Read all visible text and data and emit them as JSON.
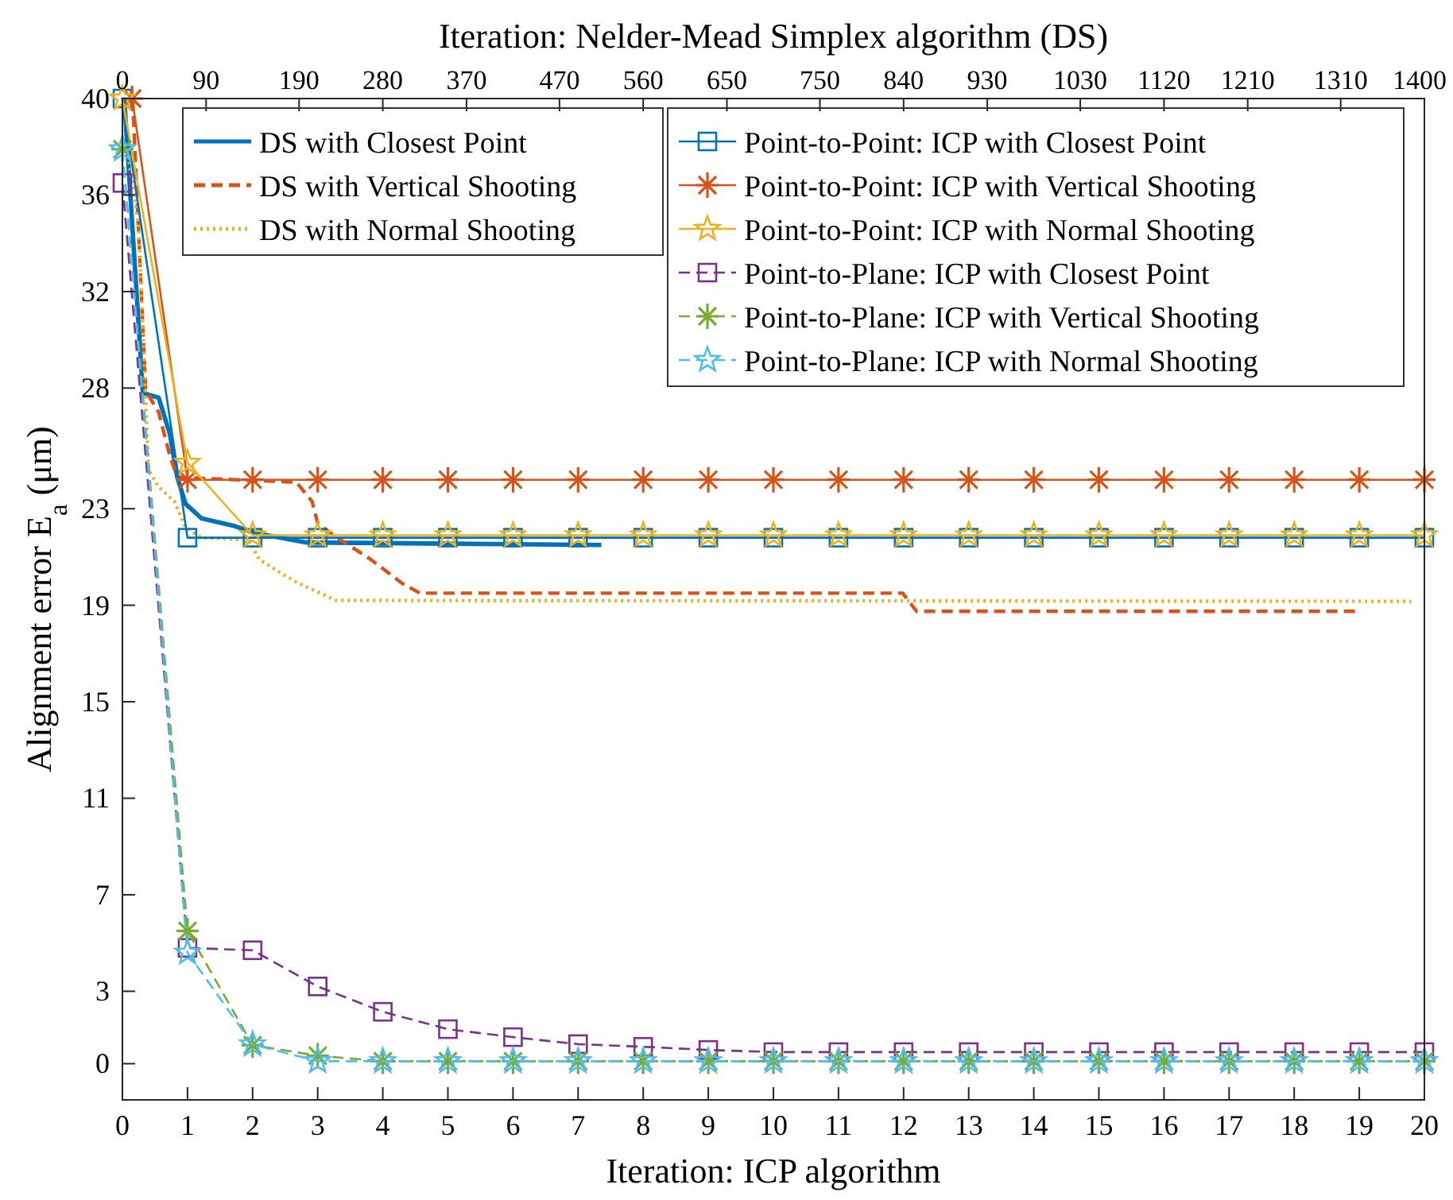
{
  "chart_data": {
    "type": "line",
    "xlabel": "Iteration: ICP algorithm",
    "x2label": "Iteration: Nelder-Mead Simplex algorithm (DS)",
    "ylabel": "Alignment error  E$_{a}$ (μm)",
    "x": [
      0,
      1,
      2,
      3,
      4,
      5,
      6,
      7,
      8,
      9,
      10,
      11,
      12,
      13,
      14,
      15,
      16,
      17,
      18,
      19,
      20
    ],
    "xlim": [
      0,
      20
    ],
    "xticks": [
      0,
      1,
      2,
      3,
      4,
      5,
      6,
      7,
      8,
      9,
      10,
      11,
      12,
      13,
      14,
      15,
      16,
      17,
      18,
      19,
      20
    ],
    "x2lim": [
      0,
      1400
    ],
    "x2ticks": [
      0,
      90,
      190,
      280,
      370,
      470,
      560,
      650,
      750,
      840,
      930,
      1030,
      1120,
      1210,
      1310,
      1400
    ],
    "ylim": [
      -1.5,
      40
    ],
    "yticks": [
      0,
      3,
      7,
      11,
      15,
      19,
      23,
      28,
      32,
      36,
      40
    ],
    "grid": false,
    "legend": "top right",
    "series": [
      {
        "name": "DS with Closest Point",
        "color": "#0072bd",
        "axis": "x2",
        "marker": "none",
        "line_style": "solid",
        "x": [
          2,
          14,
          22,
          39,
          51,
          59,
          68,
          85,
          119,
          142,
          198,
          515
        ],
        "values": [
          40,
          32.7,
          27.8,
          27.6,
          26.1,
          24.3,
          23.2,
          22.6,
          22.3,
          22.0,
          21.6,
          21.5
        ]
      },
      {
        "name": "DS with Vertical Shooting",
        "color": "#d95319",
        "axis": "x2",
        "marker": "none",
        "line_style": "dashed",
        "x": [
          11,
          25,
          39,
          51,
          59,
          187,
          204,
          210,
          227,
          267,
          301,
          320,
          839,
          854,
          1327
        ],
        "values": [
          40,
          27.9,
          27.0,
          25.2,
          24.3,
          24.1,
          23.3,
          22.4,
          21.9,
          20.9,
          19.9,
          19.5,
          19.5,
          18.75,
          18.75
        ]
      },
      {
        "name": "DS with Normal Shooting",
        "color": "#edb120",
        "axis": "x2",
        "marker": "none",
        "line_style": "dotted",
        "x": [
          5,
          17,
          22,
          28,
          39,
          56,
          68,
          85,
          136,
          147,
          176,
          190,
          230,
          1386
        ],
        "values": [
          37.9,
          34.9,
          30.5,
          24.6,
          23.9,
          23.3,
          22.2,
          21.8,
          21.7,
          20.9,
          20.2,
          19.9,
          19.2,
          19.16
        ]
      },
      {
        "name": "Point-to-Point: ICP with Closest Point",
        "color": "#0072bd",
        "marker": "square",
        "line_style": "solid",
        "values": [
          40,
          21.8,
          21.8,
          21.8,
          21.8,
          21.8,
          21.8,
          21.8,
          21.8,
          21.8,
          21.8,
          21.8,
          21.8,
          21.8,
          21.8,
          21.8,
          21.8,
          21.8,
          21.8,
          21.8,
          21.8
        ]
      },
      {
        "name": "Point-to-Point: ICP with Vertical Shooting",
        "color": "#d95319",
        "marker": "cross",
        "line_style": "solid",
        "x": [
          0.15,
          1,
          2,
          3,
          4,
          5,
          6,
          7,
          8,
          9,
          10,
          11,
          12,
          13,
          14,
          15,
          16,
          17,
          18,
          19,
          20
        ],
        "values": [
          40,
          24.2,
          24.2,
          24.2,
          24.2,
          24.2,
          24.2,
          24.2,
          24.2,
          24.2,
          24.2,
          24.2,
          24.2,
          24.2,
          24.2,
          24.2,
          24.2,
          24.2,
          24.2,
          24.2,
          24.2
        ]
      },
      {
        "name": "Point-to-Point: ICP with Normal Shooting",
        "color": "#edb120",
        "marker": "star",
        "line_style": "solid",
        "values": [
          40,
          24.9,
          21.9,
          21.9,
          21.9,
          21.9,
          21.9,
          21.9,
          21.9,
          21.9,
          21.9,
          21.9,
          21.9,
          21.9,
          21.9,
          21.9,
          21.9,
          21.9,
          21.9,
          21.9,
          21.9
        ]
      },
      {
        "name": "Point-to-Plane: ICP with Closest Point",
        "color": "#7e2f8e",
        "marker": "square",
        "line_style": "dashed",
        "values": [
          36.5,
          4.8,
          4.7,
          3.2,
          2.15,
          1.43,
          1.1,
          0.81,
          0.7,
          0.57,
          0.48,
          0.48,
          0.48,
          0.48,
          0.48,
          0.48,
          0.48,
          0.48,
          0.48,
          0.48,
          0.48
        ]
      },
      {
        "name": "Point-to-Plane: ICP with Vertical Shooting",
        "color": "#77ac30",
        "marker": "cross",
        "line_style": "dashed",
        "values": [
          37.9,
          5.5,
          0.77,
          0.33,
          0.1,
          0.1,
          0.1,
          0.1,
          0.1,
          0.1,
          0.1,
          0.1,
          0.1,
          0.1,
          0.1,
          0.1,
          0.1,
          0.1,
          0.1,
          0.1,
          0.1
        ]
      },
      {
        "name": "Point-to-Plane: ICP with Normal Shooting",
        "color": "#4dbeee",
        "marker": "star",
        "line_style": "dashed",
        "values": [
          37.9,
          4.6,
          0.8,
          0.1,
          0.1,
          0.1,
          0.1,
          0.1,
          0.1,
          0.1,
          0.1,
          0.1,
          0.1,
          0.1,
          0.1,
          0.1,
          0.1,
          0.1,
          0.1,
          0.1,
          0.1
        ]
      }
    ]
  }
}
